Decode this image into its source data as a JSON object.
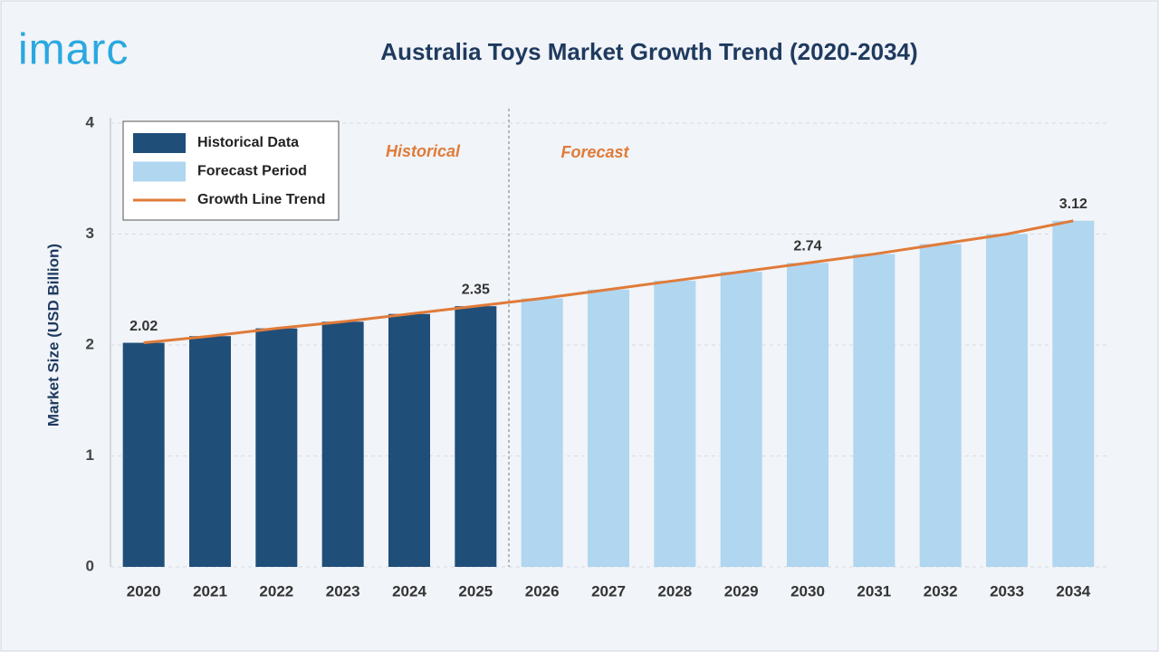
{
  "logo": "imarc",
  "chart_data": {
    "type": "bar",
    "title": "Australia Toys Market Growth Trend (2020-2034)",
    "y_label": "Market Size (USD Billion)",
    "categories": [
      "2020",
      "2021",
      "2022",
      "2023",
      "2024",
      "2025",
      "2026",
      "2027",
      "2028",
      "2029",
      "2030",
      "2031",
      "2032",
      "2033",
      "2034"
    ],
    "series": [
      {
        "name": "Historical Data",
        "color": "#1f4e79",
        "kind": "bar",
        "values": [
          2.02,
          2.08,
          2.15,
          2.21,
          2.28,
          2.35,
          null,
          null,
          null,
          null,
          null,
          null,
          null,
          null,
          null
        ],
        "value_labels": [
          "2.02",
          null,
          null,
          null,
          null,
          "2.35",
          null,
          null,
          null,
          null,
          null,
          null,
          null,
          null,
          null
        ]
      },
      {
        "name": "Forecast Period",
        "color": "#b0d6f0",
        "kind": "bar",
        "values": [
          null,
          null,
          null,
          null,
          null,
          null,
          2.42,
          2.5,
          2.58,
          2.66,
          2.74,
          2.82,
          2.91,
          3.0,
          3.12
        ],
        "value_labels": [
          null,
          null,
          null,
          null,
          null,
          null,
          null,
          null,
          null,
          null,
          "2.74",
          null,
          null,
          null,
          "3.12"
        ]
      },
      {
        "name": "Growth Line Trend",
        "color": "#e07b39",
        "kind": "line",
        "values": [
          2.02,
          2.08,
          2.15,
          2.21,
          2.28,
          2.35,
          2.42,
          2.5,
          2.58,
          2.66,
          2.74,
          2.82,
          2.91,
          3.0,
          3.12
        ]
      }
    ],
    "annotations": [
      "Historical",
      "Forecast"
    ],
    "ylim": [
      0,
      4
    ],
    "yticks": [
      0,
      1,
      2,
      3,
      4
    ],
    "grid": true
  }
}
